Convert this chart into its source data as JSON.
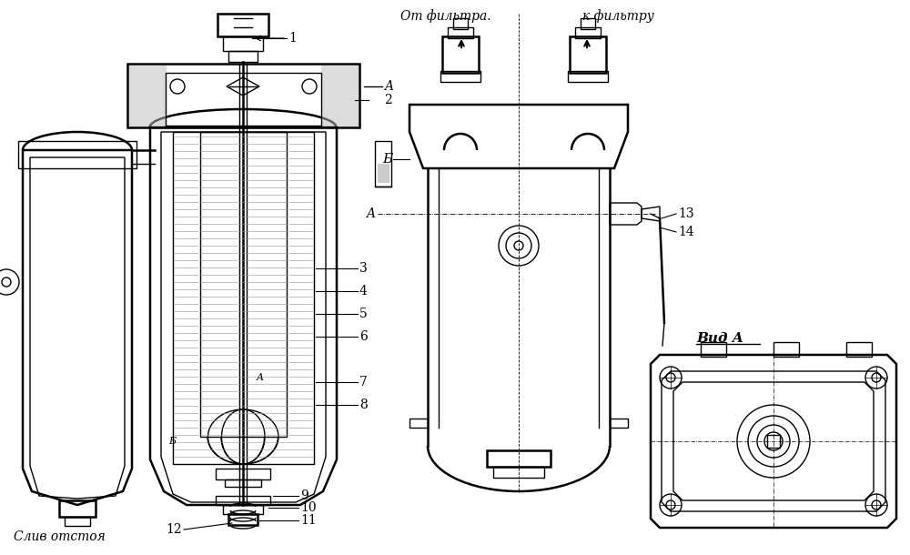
{
  "background_color": "#ffffff",
  "line_color": "#000000",
  "figsize": [
    10.0,
    6.1
  ],
  "dpi": 100,
  "labels": {
    "label1": "1",
    "label2": "2",
    "label3": "3",
    "label4": "4",
    "label5": "5",
    "label6": "6",
    "label7": "7",
    "label8": "8",
    "label9": "9",
    "label10": "10",
    "label11": "11",
    "label12": "12",
    "label13": "13",
    "label14": "14",
    "labelA": "A",
    "labelB": "Б",
    "label_vid": "Вид A",
    "label_ot": "От фильтра.",
    "label_k": "к фильтру",
    "label_sliv": "Слив отстоя"
  }
}
